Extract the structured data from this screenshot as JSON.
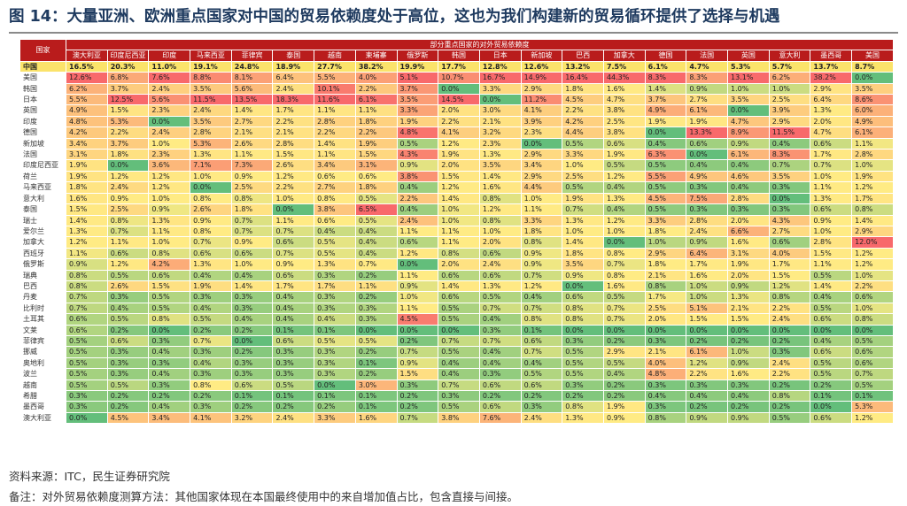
{
  "title": "图 14：大量亚洲、欧洲重点国家对中国的贸易依赖度处于高位，这也为我们构建新的贸易循环提供了选择与机遇",
  "table": {
    "corner_label": "国家",
    "group_label": "部分重点国家的对外贸易依赖度",
    "columns": [
      "澳大利亚",
      "印度尼西亚",
      "印度",
      "马来西亚",
      "菲律宾",
      "泰国",
      "越南",
      "柬埔寨",
      "俄罗斯",
      "韩国",
      "日本",
      "新加坡",
      "巴西",
      "加拿大",
      "德国",
      "法国",
      "英国",
      "意大利",
      "墨西哥",
      "美国"
    ],
    "rows": [
      {
        "label": "中国",
        "values": [
          "16.5%",
          "20.3%",
          "11.0%",
          "19.1%",
          "24.8%",
          "18.9%",
          "27.7%",
          "38.2%",
          "19.9%",
          "17.7%",
          "12.8%",
          "12.6%",
          "13.2%",
          "7.5%",
          "6.1%",
          "4.7%",
          "5.3%",
          "5.7%",
          "13.7%",
          "8.7%"
        ]
      },
      {
        "label": "美国",
        "values": [
          "12.6%",
          "6.8%",
          "7.6%",
          "8.8%",
          "8.1%",
          "6.4%",
          "5.5%",
          "4.0%",
          "5.1%",
          "10.7%",
          "16.7%",
          "14.9%",
          "16.4%",
          "44.3%",
          "8.3%",
          "8.3%",
          "13.1%",
          "6.2%",
          "38.2%",
          "0.0%"
        ]
      },
      {
        "label": "韩国",
        "values": [
          "6.2%",
          "3.7%",
          "2.4%",
          "3.5%",
          "5.6%",
          "2.4%",
          "10.1%",
          "2.2%",
          "3.7%",
          "0.0%",
          "3.3%",
          "2.9%",
          "1.8%",
          "1.6%",
          "1.4%",
          "0.9%",
          "1.0%",
          "1.0%",
          "2.9%",
          "3.5%"
        ]
      },
      {
        "label": "日本",
        "values": [
          "5.5%",
          "12.5%",
          "5.6%",
          "11.5%",
          "13.5%",
          "18.3%",
          "11.6%",
          "6.1%",
          "3.5%",
          "14.5%",
          "0.0%",
          "11.2%",
          "4.5%",
          "4.7%",
          "3.7%",
          "2.7%",
          "3.5%",
          "2.5%",
          "6.4%",
          "8.6%"
        ]
      },
      {
        "label": "英国",
        "values": [
          "4.9%",
          "1.5%",
          "2.3%",
          "2.4%",
          "1.4%",
          "1.7%",
          "1.1%",
          "1.1%",
          "3.3%",
          "2.0%",
          "3.0%",
          "4.1%",
          "2.2%",
          "3.8%",
          "4.9%",
          "6.1%",
          "0.0%",
          "3.9%",
          "1.3%",
          "6.0%"
        ]
      },
      {
        "label": "印度",
        "values": [
          "4.8%",
          "5.3%",
          "0.0%",
          "3.5%",
          "2.7%",
          "2.2%",
          "2.8%",
          "1.8%",
          "1.9%",
          "2.2%",
          "2.1%",
          "3.9%",
          "4.2%",
          "2.5%",
          "1.9%",
          "1.9%",
          "4.7%",
          "2.9%",
          "2.0%",
          "4.9%"
        ]
      },
      {
        "label": "德国",
        "values": [
          "4.2%",
          "2.2%",
          "2.4%",
          "2.8%",
          "2.1%",
          "2.1%",
          "2.2%",
          "2.2%",
          "4.8%",
          "4.1%",
          "3.2%",
          "2.3%",
          "4.4%",
          "3.8%",
          "0.0%",
          "13.3%",
          "8.9%",
          "11.5%",
          "4.7%",
          "6.1%"
        ]
      },
      {
        "label": "新加坡",
        "values": [
          "3.4%",
          "3.7%",
          "1.0%",
          "5.3%",
          "2.6%",
          "2.8%",
          "1.4%",
          "1.9%",
          "0.5%",
          "1.2%",
          "2.3%",
          "0.0%",
          "0.5%",
          "0.6%",
          "0.4%",
          "0.6%",
          "0.9%",
          "0.4%",
          "0.6%",
          "1.1%"
        ]
      },
      {
        "label": "法国",
        "values": [
          "3.1%",
          "1.8%",
          "2.3%",
          "1.3%",
          "1.1%",
          "1.5%",
          "1.1%",
          "1.5%",
          "4.3%",
          "1.9%",
          "1.3%",
          "2.9%",
          "3.3%",
          "1.9%",
          "6.3%",
          "0.0%",
          "6.1%",
          "8.3%",
          "1.7%",
          "2.8%"
        ]
      },
      {
        "label": "印度尼西亚",
        "values": [
          "1.9%",
          "0.0%",
          "3.6%",
          "7.1%",
          "7.3%",
          "2.6%",
          "3.4%",
          "3.1%",
          "0.9%",
          "2.0%",
          "3.5%",
          "3.4%",
          "1.0%",
          "0.5%",
          "0.5%",
          "0.4%",
          "0.4%",
          "0.7%",
          "0.7%",
          "1.0%"
        ]
      },
      {
        "label": "荷兰",
        "values": [
          "1.9%",
          "1.2%",
          "1.2%",
          "1.0%",
          "0.9%",
          "1.2%",
          "0.6%",
          "0.6%",
          "3.8%",
          "1.5%",
          "1.4%",
          "2.9%",
          "2.5%",
          "1.2%",
          "5.5%",
          "4.9%",
          "4.6%",
          "3.5%",
          "1.0%",
          "1.9%"
        ]
      },
      {
        "label": "马来西亚",
        "values": [
          "1.8%",
          "2.4%",
          "1.2%",
          "0.0%",
          "2.5%",
          "2.2%",
          "2.7%",
          "1.8%",
          "0.4%",
          "1.2%",
          "1.6%",
          "4.4%",
          "0.5%",
          "0.4%",
          "0.5%",
          "0.3%",
          "0.4%",
          "0.3%",
          "1.1%",
          "1.2%"
        ]
      },
      {
        "label": "意大利",
        "values": [
          "1.6%",
          "0.9%",
          "1.0%",
          "0.8%",
          "0.8%",
          "1.0%",
          "0.8%",
          "0.5%",
          "2.2%",
          "1.4%",
          "0.8%",
          "1.0%",
          "1.9%",
          "1.3%",
          "4.5%",
          "7.5%",
          "2.8%",
          "0.0%",
          "1.3%",
          "1.7%"
        ]
      },
      {
        "label": "泰国",
        "values": [
          "1.5%",
          "2.5%",
          "0.9%",
          "2.6%",
          "1.8%",
          "0.0%",
          "3.8%",
          "6.5%",
          "0.4%",
          "1.0%",
          "1.2%",
          "1.1%",
          "0.7%",
          "0.4%",
          "0.5%",
          "0.3%",
          "0.3%",
          "0.3%",
          "0.6%",
          "0.8%"
        ]
      },
      {
        "label": "瑞士",
        "values": [
          "1.4%",
          "0.8%",
          "1.3%",
          "0.9%",
          "0.7%",
          "1.1%",
          "0.6%",
          "0.5%",
          "2.4%",
          "1.0%",
          "0.8%",
          "3.3%",
          "1.3%",
          "1.2%",
          "3.3%",
          "2.8%",
          "2.0%",
          "4.3%",
          "0.9%",
          "1.4%"
        ]
      },
      {
        "label": "爱尔兰",
        "values": [
          "1.3%",
          "0.7%",
          "1.1%",
          "0.8%",
          "0.7%",
          "0.7%",
          "0.4%",
          "0.4%",
          "1.1%",
          "1.1%",
          "1.0%",
          "1.8%",
          "1.0%",
          "1.0%",
          "1.8%",
          "2.4%",
          "6.6%",
          "2.7%",
          "1.0%",
          "2.9%"
        ]
      },
      {
        "label": "加拿大",
        "values": [
          "1.2%",
          "1.1%",
          "1.0%",
          "0.7%",
          "0.9%",
          "0.6%",
          "0.5%",
          "0.4%",
          "0.6%",
          "1.1%",
          "2.0%",
          "0.8%",
          "1.4%",
          "0.0%",
          "1.0%",
          "0.9%",
          "1.6%",
          "0.6%",
          "2.8%",
          "12.0%"
        ]
      },
      {
        "label": "西班牙",
        "values": [
          "1.1%",
          "0.6%",
          "0.8%",
          "0.6%",
          "0.6%",
          "0.7%",
          "0.5%",
          "0.4%",
          "1.2%",
          "0.8%",
          "0.6%",
          "0.9%",
          "1.8%",
          "0.8%",
          "2.9%",
          "6.4%",
          "3.1%",
          "4.0%",
          "1.5%",
          "1.2%"
        ]
      },
      {
        "label": "俄罗斯",
        "values": [
          "0.9%",
          "1.2%",
          "4.2%",
          "1.3%",
          "1.0%",
          "0.9%",
          "1.3%",
          "0.7%",
          "0.0%",
          "2.0%",
          "2.4%",
          "0.9%",
          "3.5%",
          "0.7%",
          "1.8%",
          "1.7%",
          "1.9%",
          "1.7%",
          "1.1%",
          "1.2%"
        ]
      },
      {
        "label": "瑞典",
        "values": [
          "0.8%",
          "0.5%",
          "0.6%",
          "0.4%",
          "0.4%",
          "0.6%",
          "0.3%",
          "0.2%",
          "1.1%",
          "0.6%",
          "0.6%",
          "0.7%",
          "0.9%",
          "0.8%",
          "2.1%",
          "1.6%",
          "2.0%",
          "1.5%",
          "0.5%",
          "1.0%"
        ]
      },
      {
        "label": "巴西",
        "values": [
          "0.8%",
          "2.6%",
          "1.5%",
          "1.9%",
          "1.4%",
          "1.7%",
          "1.7%",
          "1.1%",
          "0.9%",
          "1.4%",
          "1.3%",
          "1.2%",
          "0.0%",
          "1.6%",
          "0.8%",
          "1.0%",
          "0.9%",
          "1.2%",
          "1.4%",
          "2.2%"
        ]
      },
      {
        "label": "丹麦",
        "values": [
          "0.7%",
          "0.3%",
          "0.5%",
          "0.3%",
          "0.3%",
          "0.4%",
          "0.3%",
          "0.2%",
          "1.0%",
          "0.6%",
          "0.5%",
          "0.4%",
          "0.6%",
          "0.5%",
          "1.7%",
          "1.0%",
          "1.3%",
          "0.8%",
          "0.4%",
          "0.6%"
        ]
      },
      {
        "label": "比利时",
        "values": [
          "0.7%",
          "0.4%",
          "0.5%",
          "0.4%",
          "0.3%",
          "0.4%",
          "0.3%",
          "0.3%",
          "1.1%",
          "0.5%",
          "0.7%",
          "0.7%",
          "0.8%",
          "0.7%",
          "2.5%",
          "5.1%",
          "2.1%",
          "2.2%",
          "0.5%",
          "1.0%"
        ]
      },
      {
        "label": "土耳其",
        "values": [
          "0.6%",
          "0.5%",
          "0.8%",
          "0.5%",
          "0.4%",
          "0.4%",
          "0.4%",
          "0.3%",
          "4.5%",
          "0.5%",
          "0.4%",
          "0.8%",
          "0.8%",
          "0.7%",
          "2.0%",
          "1.5%",
          "1.5%",
          "2.4%",
          "0.6%",
          "0.8%"
        ]
      },
      {
        "label": "文莱",
        "values": [
          "0.6%",
          "0.2%",
          "0.0%",
          "0.2%",
          "0.2%",
          "0.1%",
          "0.1%",
          "0.0%",
          "0.0%",
          "0.0%",
          "0.3%",
          "0.1%",
          "0.0%",
          "0.0%",
          "0.0%",
          "0.0%",
          "0.0%",
          "0.0%",
          "0.0%",
          "0.0%"
        ]
      },
      {
        "label": "菲律宾",
        "values": [
          "0.5%",
          "0.6%",
          "0.3%",
          "0.7%",
          "0.0%",
          "0.6%",
          "0.5%",
          "0.5%",
          "0.2%",
          "0.7%",
          "0.7%",
          "0.6%",
          "0.3%",
          "0.2%",
          "0.3%",
          "0.2%",
          "0.2%",
          "0.2%",
          "0.4%",
          "0.5%"
        ]
      },
      {
        "label": "挪威",
        "values": [
          "0.5%",
          "0.3%",
          "0.4%",
          "0.3%",
          "0.2%",
          "0.3%",
          "0.3%",
          "0.2%",
          "0.7%",
          "0.5%",
          "0.4%",
          "0.7%",
          "0.5%",
          "2.9%",
          "2.1%",
          "6.1%",
          "1.0%",
          "0.3%",
          "0.6%",
          "0.6%"
        ]
      },
      {
        "label": "奥地利",
        "values": [
          "0.5%",
          "0.3%",
          "0.3%",
          "0.4%",
          "0.3%",
          "0.3%",
          "0.3%",
          "0.1%",
          "0.9%",
          "0.4%",
          "0.4%",
          "0.4%",
          "0.5%",
          "0.5%",
          "4.0%",
          "1.2%",
          "0.9%",
          "2.4%",
          "0.5%",
          "0.6%"
        ]
      },
      {
        "label": "波兰",
        "values": [
          "0.5%",
          "0.3%",
          "0.4%",
          "0.3%",
          "0.3%",
          "0.3%",
          "0.3%",
          "0.2%",
          "1.5%",
          "0.4%",
          "0.3%",
          "0.5%",
          "0.5%",
          "0.4%",
          "4.8%",
          "2.2%",
          "1.6%",
          "2.2%",
          "0.5%",
          "0.7%"
        ]
      },
      {
        "label": "越南",
        "values": [
          "0.5%",
          "0.5%",
          "0.3%",
          "0.8%",
          "0.6%",
          "0.5%",
          "0.0%",
          "3.0%",
          "0.3%",
          "0.7%",
          "0.6%",
          "0.6%",
          "0.3%",
          "0.2%",
          "0.3%",
          "0.3%",
          "0.3%",
          "0.2%",
          "0.2%",
          "0.5%"
        ]
      },
      {
        "label": "希腊",
        "values": [
          "0.3%",
          "0.2%",
          "0.2%",
          "0.2%",
          "0.1%",
          "0.1%",
          "0.1%",
          "0.1%",
          "0.2%",
          "0.3%",
          "0.2%",
          "0.2%",
          "0.2%",
          "0.2%",
          "0.4%",
          "0.4%",
          "0.4%",
          "0.8%",
          "0.1%",
          "0.1%"
        ]
      },
      {
        "label": "墨西哥",
        "values": [
          "0.3%",
          "0.2%",
          "0.4%",
          "0.3%",
          "0.2%",
          "0.2%",
          "0.2%",
          "0.1%",
          "0.2%",
          "0.5%",
          "0.6%",
          "0.3%",
          "0.8%",
          "1.9%",
          "0.3%",
          "0.2%",
          "0.2%",
          "0.2%",
          "0.0%",
          "5.3%"
        ]
      },
      {
        "label": "澳大利亚",
        "values": [
          "0.0%",
          "4.5%",
          "3.4%",
          "4.1%",
          "3.2%",
          "2.4%",
          "3.3%",
          "1.6%",
          "0.7%",
          "3.8%",
          "7.6%",
          "2.4%",
          "1.3%",
          "0.9%",
          "0.8%",
          "0.9%",
          "0.9%",
          "0.5%",
          "0.6%",
          "1.2%"
        ]
      }
    ]
  },
  "source": "资料来源：ITC，民生证券研究院",
  "note": "备注：对外贸易依赖度测算方法：其他国家体现在本国最终使用中的来自增加值占比，包含直接与间接。",
  "colors": {
    "header_bg": "#b91c1c",
    "china_row_bg": "#fbe36a",
    "scale_low": "#63be7b",
    "scale_mid": "#ffeb84",
    "scale_high": "#f8696b",
    "title_color": "#1e3a5f"
  }
}
